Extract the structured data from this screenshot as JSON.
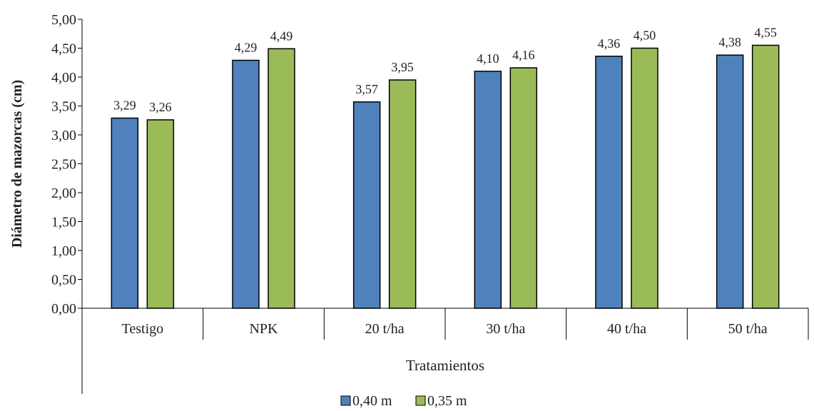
{
  "chart_data": {
    "type": "bar",
    "categories": [
      "Testigo",
      "NPK",
      "20 t/ha",
      "30 t/ha",
      "40 t/ha",
      "50 t/ha"
    ],
    "series": [
      {
        "name": "0,40 m",
        "values": [
          3.29,
          4.29,
          3.57,
          4.1,
          4.36,
          4.38
        ],
        "labels": [
          "3,29",
          "4,29",
          "3,57",
          "4,10",
          "4,36",
          "4,38"
        ],
        "color": "#4f81bd"
      },
      {
        "name": "0,35 m",
        "values": [
          3.26,
          4.49,
          3.95,
          4.16,
          4.5,
          4.55
        ],
        "labels": [
          "3,26",
          "4,49",
          "3,95",
          "4,16",
          "4,50",
          "4,55"
        ],
        "color": "#9bbb59"
      }
    ],
    "xlabel": "Tratamientos",
    "ylabel": "Diámetro de mazorcas (cm)",
    "ylim": [
      0,
      5
    ],
    "yticks": [
      0,
      0.5,
      1,
      1.5,
      2,
      2.5,
      3,
      3.5,
      4,
      4.5,
      5
    ],
    "ytick_labels": [
      "0,00",
      "0,50",
      "1,00",
      "1,50",
      "2,00",
      "2,50",
      "3,00",
      "3,50",
      "4,00",
      "4,50",
      "5,00"
    ],
    "grid": false,
    "legend_position": "bottom"
  }
}
